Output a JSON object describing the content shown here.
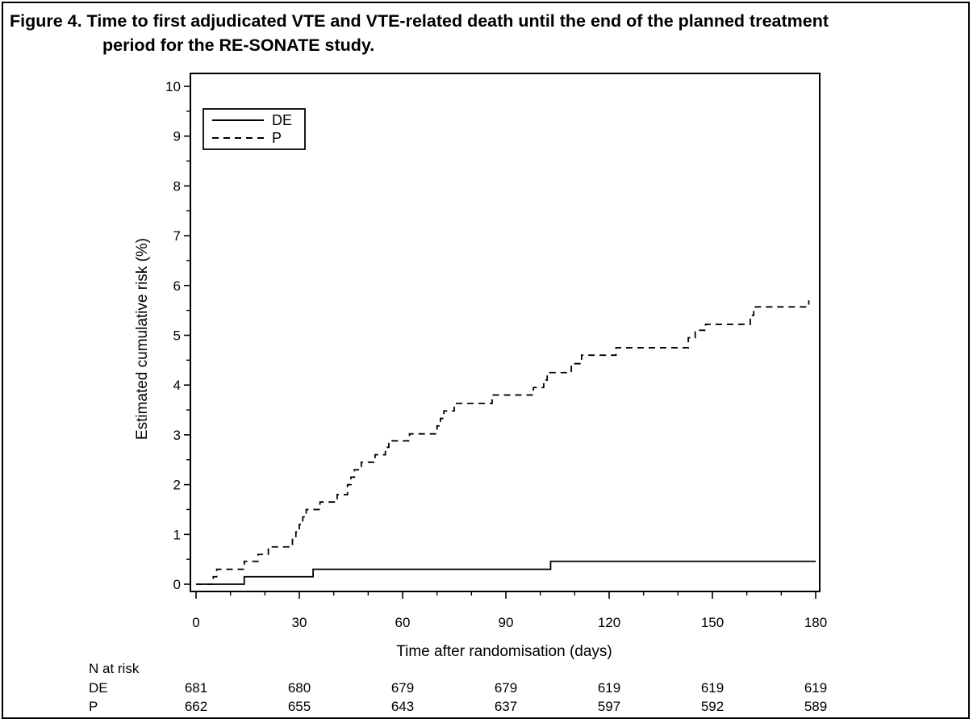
{
  "figure": {
    "title_line1": "Figure 4. Time to first adjudicated VTE and VTE-related death until the end  of the planned treatment",
    "title_line2": "period for the RE-SONATE study."
  },
  "chart_data": {
    "type": "line",
    "step": true,
    "xlabel": "Time after randomisation (days)",
    "ylabel": "Estimated cumulative risk (%)",
    "xlim": [
      0,
      180
    ],
    "ylim": [
      0,
      10
    ],
    "xticks": [
      0,
      30,
      60,
      90,
      120,
      150,
      180
    ],
    "yticks": [
      0,
      1,
      2,
      3,
      4,
      5,
      6,
      7,
      8,
      9,
      10
    ],
    "grid": false,
    "legend_position": "top-left",
    "series": [
      {
        "name": "DE",
        "line_style": "solid",
        "color": "#000000",
        "points": [
          [
            0,
            0
          ],
          [
            14,
            0.15
          ],
          [
            34,
            0.3
          ],
          [
            103,
            0.46
          ],
          [
            180,
            0.46
          ]
        ]
      },
      {
        "name": "P",
        "line_style": "dashed",
        "color": "#000000",
        "points": [
          [
            0,
            0
          ],
          [
            5,
            0.15
          ],
          [
            6,
            0.3
          ],
          [
            14,
            0.46
          ],
          [
            18,
            0.6
          ],
          [
            21,
            0.75
          ],
          [
            28,
            0.9
          ],
          [
            29,
            1.05
          ],
          [
            30,
            1.2
          ],
          [
            31,
            1.35
          ],
          [
            32,
            1.5
          ],
          [
            36,
            1.65
          ],
          [
            41,
            1.8
          ],
          [
            44,
            2.0
          ],
          [
            45,
            2.15
          ],
          [
            46,
            2.3
          ],
          [
            48,
            2.45
          ],
          [
            52,
            2.6
          ],
          [
            55,
            2.75
          ],
          [
            56,
            2.88
          ],
          [
            62,
            3.02
          ],
          [
            70,
            3.18
          ],
          [
            71,
            3.33
          ],
          [
            72,
            3.48
          ],
          [
            75,
            3.63
          ],
          [
            86,
            3.8
          ],
          [
            98,
            3.95
          ],
          [
            101,
            4.1
          ],
          [
            102,
            4.25
          ],
          [
            109,
            4.43
          ],
          [
            112,
            4.6
          ],
          [
            122,
            4.75
          ],
          [
            143,
            4.95
          ],
          [
            145,
            5.1
          ],
          [
            148,
            5.22
          ],
          [
            161,
            5.4
          ],
          [
            162,
            5.57
          ],
          [
            178,
            5.7
          ]
        ]
      }
    ],
    "risk_table": {
      "header": "N at risk",
      "times": [
        0,
        30,
        60,
        90,
        120,
        150,
        180
      ],
      "rows": [
        {
          "label": "DE",
          "values": [
            "681",
            "680",
            "679",
            "679",
            "619",
            "619",
            "619"
          ]
        },
        {
          "label": "P",
          "values": [
            "662",
            "655",
            "643",
            "637",
            "597",
            "592",
            "589"
          ]
        }
      ]
    }
  }
}
